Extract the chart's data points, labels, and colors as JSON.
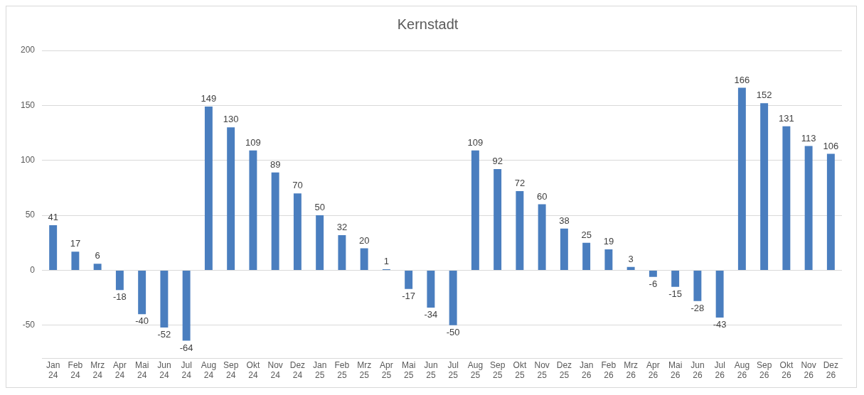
{
  "chart_data": {
    "type": "bar",
    "title": "Kernstadt",
    "categories": [
      "Jan 24",
      "Feb 24",
      "Mrz 24",
      "Apr 24",
      "Mai 24",
      "Jun 24",
      "Jul 24",
      "Aug 24",
      "Sep 24",
      "Okt 24",
      "Nov 24",
      "Dez 24",
      "Jan 25",
      "Feb 25",
      "Mrz 25",
      "Apr 25",
      "Mai 25",
      "Jun 25",
      "Jul 25",
      "Aug 25",
      "Sep 25",
      "Okt 25",
      "Nov 25",
      "Dez 25",
      "Jan 26",
      "Feb 26",
      "Mrz 26",
      "Apr 26",
      "Mai 26",
      "Jun 26",
      "Jul 26",
      "Aug 26",
      "Sep 26",
      "Okt 26",
      "Nov 26",
      "Dez 26"
    ],
    "values": [
      41,
      17,
      6,
      -18,
      -40,
      -52,
      -64,
      149,
      130,
      109,
      89,
      70,
      50,
      32,
      20,
      1,
      -17,
      -34,
      -50,
      109,
      92,
      72,
      60,
      38,
      25,
      19,
      3,
      -6,
      -15,
      -28,
      -43,
      166,
      152,
      131,
      113,
      106
    ],
    "color": "#4a7ebf",
    "ylim": [
      -80,
      200
    ],
    "yticks": [
      -50,
      0,
      50,
      100,
      150,
      200
    ],
    "grid": "y",
    "data_labels": true,
    "legend": false
  }
}
